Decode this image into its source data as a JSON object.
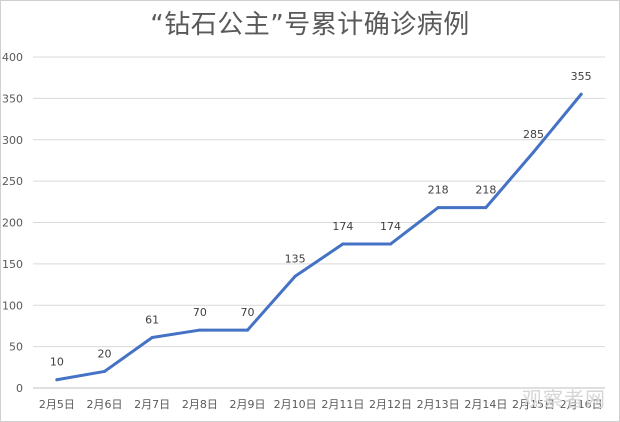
{
  "chart_data": {
    "type": "line",
    "title": "“钻石公主”号累计确诊病例",
    "categories": [
      "2月5日",
      "2月6日",
      "2月7日",
      "2月8日",
      "2月9日",
      "2月10日",
      "2月11日",
      "2月12日",
      "2月13日",
      "2月14日",
      "2月15日",
      "2月16日"
    ],
    "series": [
      {
        "values": [
          10,
          20,
          61,
          70,
          70,
          135,
          174,
          174,
          218,
          218,
          285,
          355
        ]
      }
    ],
    "ylim": [
      0,
      400
    ],
    "yticks": [
      0,
      50,
      100,
      150,
      200,
      250,
      300,
      350,
      400
    ],
    "xlabel": "",
    "ylabel": "",
    "grid": true,
    "line_color": "#4472c4"
  },
  "watermark": "观察者网"
}
